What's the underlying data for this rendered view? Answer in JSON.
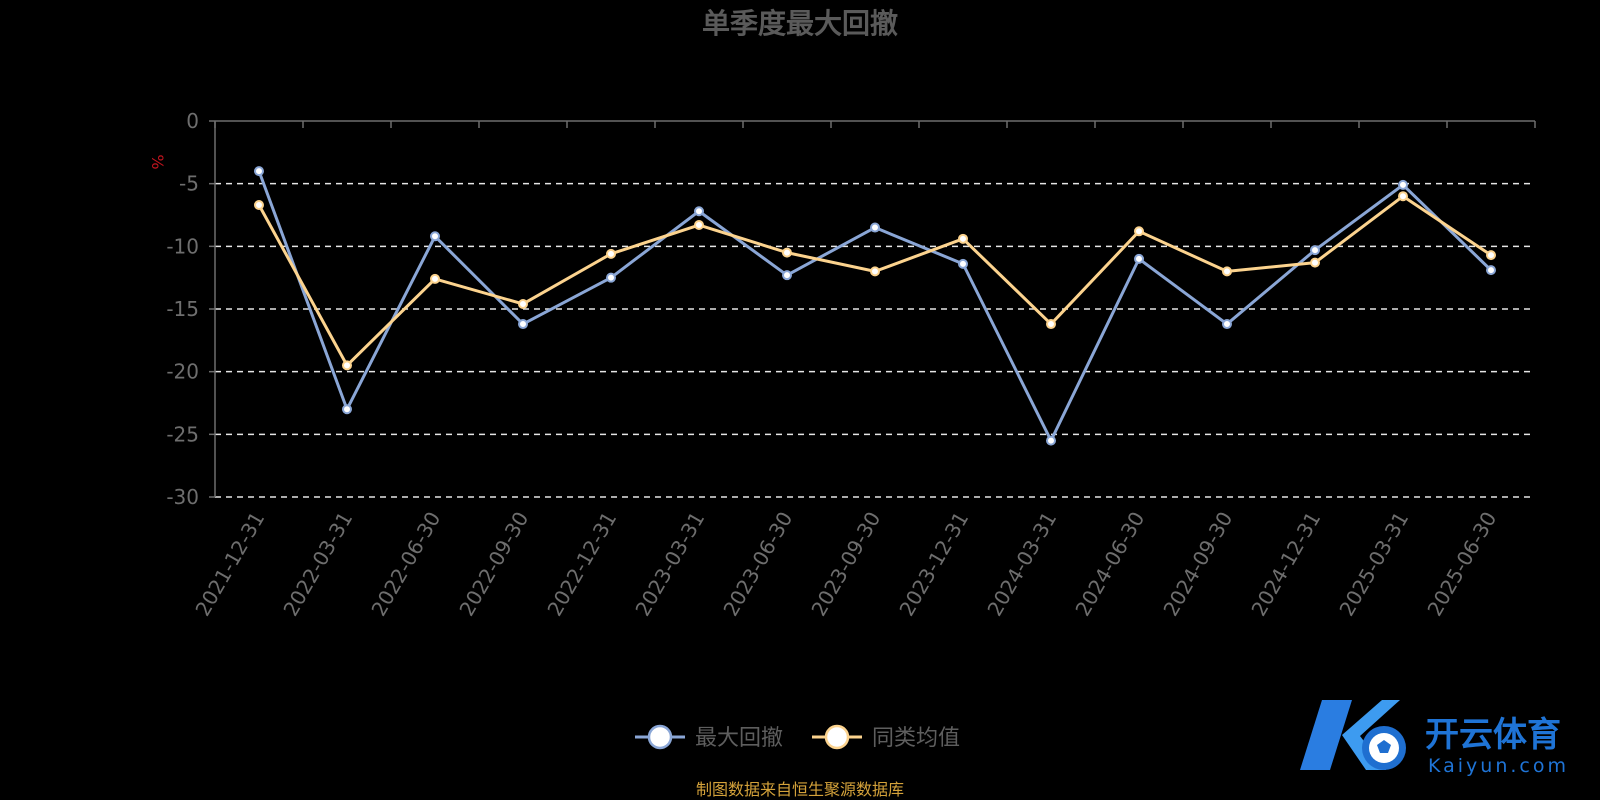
{
  "chart_data": {
    "type": "line",
    "title": "单季度最大回撤",
    "ylabel": "%",
    "ylim": [
      -30,
      0
    ],
    "yticks": [
      0,
      -5,
      -10,
      -15,
      -20,
      -25,
      -30
    ],
    "grid": true,
    "categories": [
      "2021-12-31",
      "2022-03-31",
      "2022-06-30",
      "2022-09-30",
      "2022-12-31",
      "2023-03-31",
      "2023-06-30",
      "2023-09-30",
      "2023-12-31",
      "2024-03-31",
      "2024-06-30",
      "2024-09-30",
      "2024-12-31",
      "2025-03-31",
      "2025-06-30"
    ],
    "series": [
      {
        "name": "最大回撤",
        "color": "#8aa6d6",
        "values": [
          -4.0,
          -23.0,
          -9.2,
          -16.2,
          -12.5,
          -7.2,
          -12.3,
          -8.5,
          -11.4,
          -25.5,
          -11.0,
          -16.2,
          -10.3,
          -5.1,
          -11.9
        ]
      },
      {
        "name": "同类均值",
        "color": "#fcd38e",
        "values": [
          -6.7,
          -19.5,
          -12.6,
          -14.6,
          -10.6,
          -8.3,
          -10.5,
          -12.0,
          -9.4,
          -16.2,
          -8.8,
          -12.0,
          -11.3,
          -6.0,
          -10.7
        ]
      }
    ],
    "legend_position": "bottom-center"
  },
  "footer": {
    "source": "制图数据来自恒生聚源数据库"
  },
  "watermark": {
    "brand_cn": "开云体育",
    "brand_en": "Kaiyun.com"
  }
}
